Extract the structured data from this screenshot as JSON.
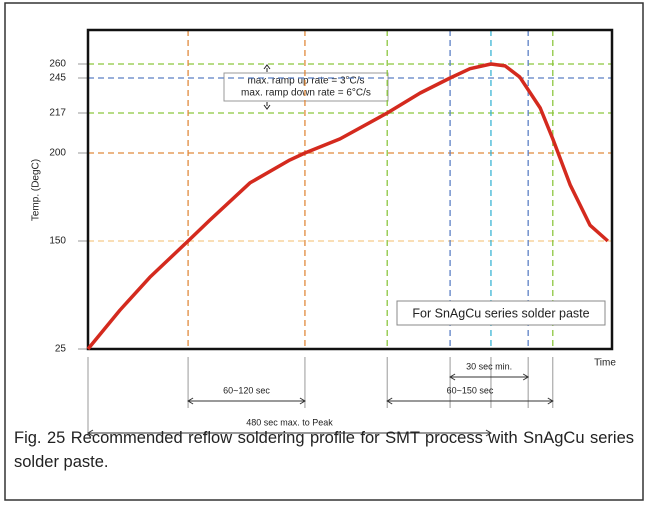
{
  "chart_data": {
    "type": "line",
    "ylabel": "Temp. (DegC)",
    "xlabel": "Time",
    "ylim": [
      25,
      260
    ],
    "yticks": [
      25,
      150,
      200,
      217,
      245,
      260
    ],
    "ytick_line_colors": [
      null,
      "#f5c98a",
      "#e08a3c",
      "#8cc63f",
      "#5b7fc4",
      "#8cc63f"
    ],
    "xlim": [
      0,
      100
    ],
    "vlines": [
      {
        "x": 19.1,
        "color": "#e08a3c"
      },
      {
        "x": 41.4,
        "color": "#e08a3c"
      },
      {
        "x": 57.1,
        "color": "#8cc63f"
      },
      {
        "x": 69.1,
        "color": "#5b7fc4"
      },
      {
        "x": 76.9,
        "color": "#3cb4d4"
      },
      {
        "x": 84.0,
        "color": "#5b7fc4"
      },
      {
        "x": 88.7,
        "color": "#8cc63f"
      }
    ],
    "series": [
      {
        "name": "For SnAgCu series solder paste",
        "color": "#d42a1e",
        "x": [
          0,
          6.1,
          11.8,
          19.1,
          23.3,
          30.9,
          38.5,
          41.4,
          48.1,
          57.1,
          63.4,
          69.1,
          72.9,
          76.9,
          79.6,
          82.4,
          86.3,
          88.7,
          92.0,
          95.8,
          99.2
        ],
        "values": [
          25,
          70,
          108,
          150,
          162,
          183,
          196,
          200,
          206,
          217,
          233,
          245,
          255,
          260,
          258,
          246,
          221,
          206,
          182,
          159,
          150
        ]
      }
    ],
    "annotations": [
      "max. ramp up rate = 3°C/s",
      "max. ramp down rate = 6°C/s"
    ],
    "spans": [
      {
        "label": "30 sec min.",
        "x": [
          69.1,
          84.0
        ],
        "row": 0
      },
      {
        "label": "60~120 sec",
        "x": [
          19.1,
          41.4
        ],
        "row": 1
      },
      {
        "label": "60~150 sec",
        "x": [
          57.1,
          88.7
        ],
        "row": 1
      },
      {
        "label": "480 sec max. to Peak",
        "x": [
          0,
          76.9
        ],
        "row": 2
      }
    ]
  },
  "caption": "Fig. 25 Recommended reflow soldering profile for SMT process with SnAgCu series solder paste."
}
